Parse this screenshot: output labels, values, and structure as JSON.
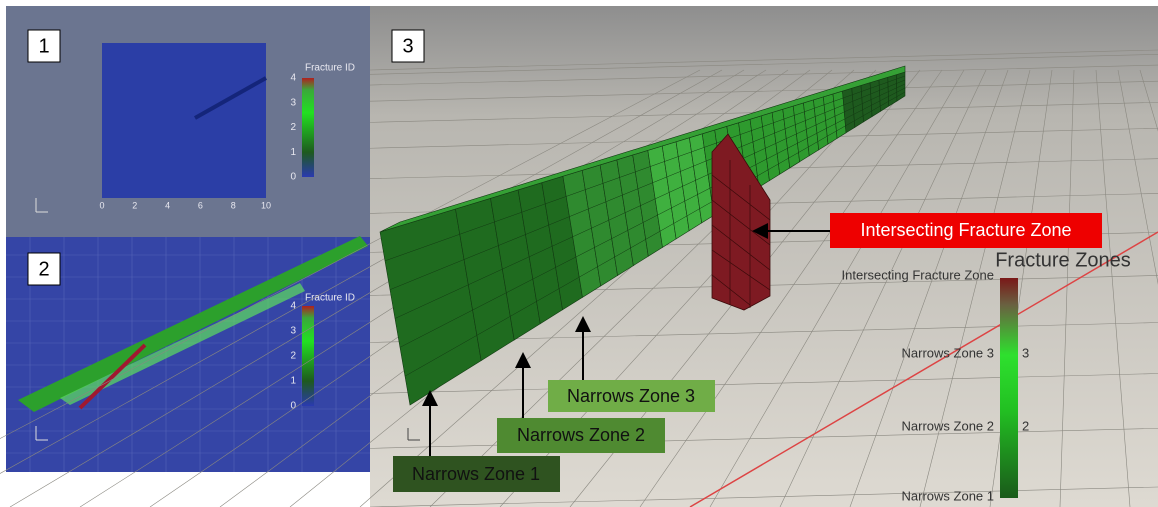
{
  "panels": [
    {
      "label": "1",
      "colorbar": {
        "title": "Fracture ID",
        "ticks": [
          "4",
          "3",
          "2",
          "1",
          "0"
        ]
      },
      "x_ticks": [
        "0",
        "2",
        "4",
        "6",
        "8",
        "10"
      ]
    },
    {
      "label": "2",
      "colorbar": {
        "title": "Fracture ID",
        "ticks": [
          "4",
          "3",
          "2",
          "1",
          "0"
        ]
      }
    },
    {
      "label": "3",
      "colorbar": {
        "title": "Fracture Zones",
        "labels": [
          "Intersecting Fracture Zone",
          "Narrows Zone 3",
          "Narrows Zone 2",
          "Narrows Zone 1"
        ],
        "ticks": [
          "3",
          "2"
        ]
      },
      "callouts": [
        "Intersecting Fracture Zone",
        "Narrows Zone 3",
        "Narrows Zone 2",
        "Narrows Zone 1"
      ]
    }
  ]
}
